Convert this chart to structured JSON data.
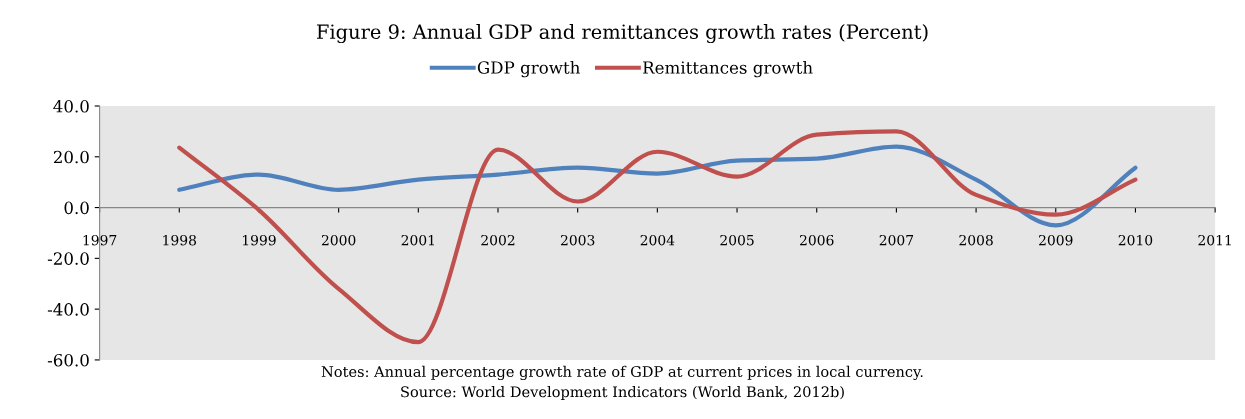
{
  "chart_data": {
    "type": "line",
    "title": "Figure 9: Annual GDP and remittances growth rates (Percent)",
    "x": [
      1998,
      1999,
      2000,
      2001,
      2002,
      2003,
      2004,
      2005,
      2006,
      2007,
      2008,
      2009,
      2010
    ],
    "series": [
      {
        "name": "GDP growth",
        "color": "#4f81bd",
        "values": [
          7.0,
          13.0,
          7.0,
          11.0,
          13.0,
          15.7,
          13.4,
          18.5,
          19.3,
          24.0,
          11.0,
          -7.0,
          15.7
        ]
      },
      {
        "name": "Remittances growth",
        "color": "#c0504d",
        "values": [
          23.6,
          -1.0,
          -32.0,
          -53.0,
          22.8,
          2.4,
          22.0,
          12.2,
          28.7,
          30.0,
          5.0,
          -2.8,
          11.0
        ]
      }
    ],
    "xlim": [
      1997,
      2011
    ],
    "xticks": [
      1997,
      1998,
      1999,
      2000,
      2001,
      2002,
      2003,
      2004,
      2005,
      2006,
      2007,
      2008,
      2009,
      2010,
      2011
    ],
    "ylim": [
      -60,
      40
    ],
    "yticks": [
      {
        "value": -60,
        "label": "-60.0"
      },
      {
        "value": -40,
        "label": "-40.0"
      },
      {
        "value": -20,
        "label": "-20.0"
      },
      {
        "value": 0,
        "label": "0.0"
      },
      {
        "value": 20,
        "label": "20.0"
      },
      {
        "value": 40,
        "label": "40.0"
      }
    ],
    "grid": false,
    "legend": "top",
    "marker": "none",
    "line_style": "solid",
    "annotations": [
      "Notes: Annual percentage growth rate of GDP at current prices in local currency.",
      "Source: World Development Indicators (World Bank, 2012b)"
    ]
  }
}
